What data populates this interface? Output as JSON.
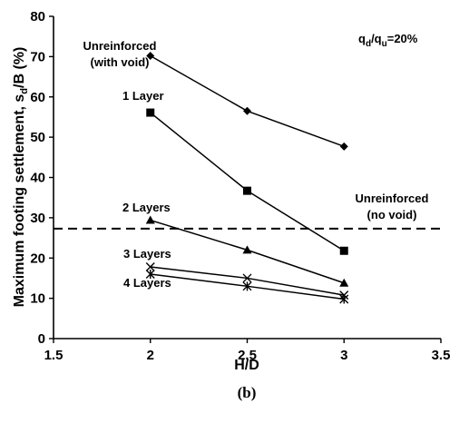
{
  "chart_data": {
    "type": "line",
    "xlabel": "H/D",
    "ylabel": "Maximum footing settlement, s",
    "ylabel_sub": "d",
    "ylabel_tail": "/B (%)",
    "xlim": [
      1.5,
      3.5
    ],
    "ylim": [
      0,
      80
    ],
    "xticks": [
      "1.5",
      "2",
      "2.5",
      "3",
      "3.5"
    ],
    "yticks": [
      "0",
      "10",
      "20",
      "30",
      "40",
      "50",
      "60",
      "70",
      "80"
    ],
    "grid": false,
    "caption": "(b)",
    "ratio": {
      "q1": "q",
      "s1": "d",
      "slash": "/q",
      "s2": "u",
      "tail": "=20%"
    },
    "series": [
      {
        "name": "Unreinforced (with void)",
        "label_lines": [
          "Unreinforced",
          "(with void)"
        ],
        "marker": "diamond",
        "x": [
          2,
          2.5,
          3
        ],
        "y": [
          70.2,
          56.5,
          47.7
        ]
      },
      {
        "name": "1 Layer",
        "label_lines": [
          "1 Layer"
        ],
        "marker": "square",
        "x": [
          2,
          2.5,
          3
        ],
        "y": [
          56.1,
          36.7,
          21.8
        ]
      },
      {
        "name": "2 Layers",
        "label_lines": [
          "2 Layers"
        ],
        "marker": "triangle",
        "x": [
          2,
          2.5,
          3
        ],
        "y": [
          29.4,
          22.0,
          13.8
        ]
      },
      {
        "name": "3 Layers",
        "label_lines": [
          "3 Layers"
        ],
        "marker": "x",
        "x": [
          2,
          2.5,
          3
        ],
        "y": [
          17.8,
          15.0,
          10.8
        ]
      },
      {
        "name": "4 Layers",
        "label_lines": [
          "4 Layers"
        ],
        "marker": "star",
        "x": [
          2,
          2.5,
          3
        ],
        "y": [
          16.0,
          13.0,
          9.8
        ]
      }
    ],
    "reference_line": {
      "name": "Unreinforced (no void)",
      "label_lines": [
        "Unreinforced",
        "(no void)"
      ],
      "y": 27.3,
      "style": "dashed"
    }
  }
}
